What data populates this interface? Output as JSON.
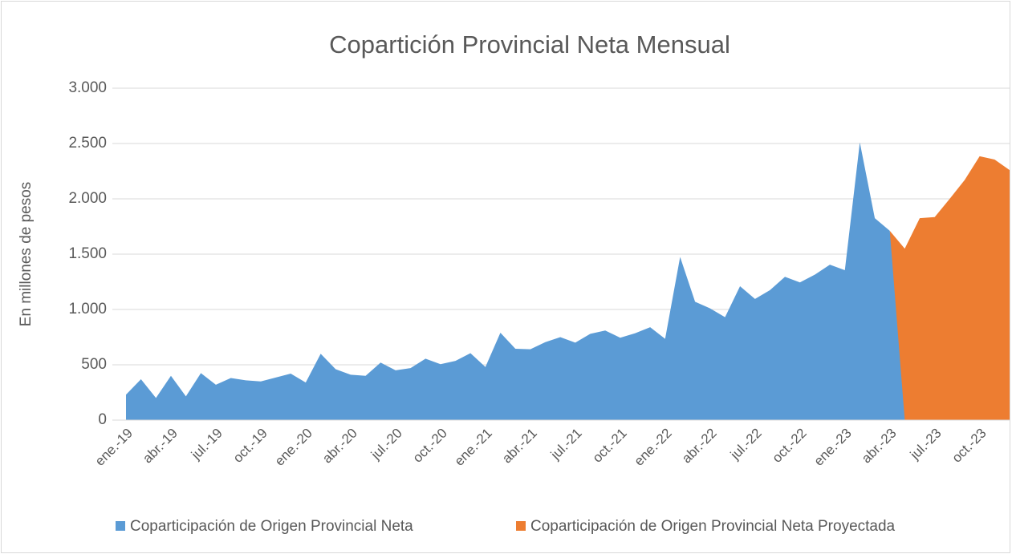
{
  "chart_data": {
    "type": "area",
    "title": "Copartición Provincial Neta Mensual",
    "y_label": "En millones de pesos",
    "categories": [
      "ene.-19",
      null,
      null,
      "abr.-19",
      null,
      null,
      "jul.-19",
      null,
      null,
      "oct.-19",
      null,
      null,
      "ene.-20",
      null,
      null,
      "abr.-20",
      null,
      null,
      "jul.-20",
      null,
      null,
      "oct.-20",
      null,
      null,
      "ene.-21",
      null,
      null,
      "abr.-21",
      null,
      null,
      "jul.-21",
      null,
      null,
      "oct.-21",
      null,
      null,
      "ene.-22",
      null,
      null,
      "abr.-22",
      null,
      null,
      "jul.-22",
      null,
      null,
      "oct.-22",
      null,
      null,
      "ene.-23",
      null,
      null,
      "abr.-23",
      null,
      null,
      "jul.-23",
      null,
      null,
      "oct.-23",
      null,
      null
    ],
    "series": [
      {
        "name": "Coparticipación de Origen Provincial Neta",
        "color": "#5b9bd5",
        "values": [
          230,
          370,
          200,
          400,
          215,
          425,
          320,
          380,
          360,
          350,
          385,
          420,
          340,
          600,
          460,
          410,
          400,
          520,
          450,
          470,
          555,
          505,
          535,
          605,
          480,
          790,
          645,
          640,
          705,
          750,
          700,
          780,
          810,
          745,
          785,
          840,
          735,
          1475,
          1070,
          1010,
          930,
          1210,
          1095,
          1175,
          1295,
          1245,
          1315,
          1405,
          1355,
          2510,
          1825,
          1711,
          0,
          0,
          0,
          0,
          0,
          0,
          0,
          0
        ]
      },
      {
        "name": "Coparticipación de Origen Provincial Neta Proyectada",
        "color": "#ed7d31",
        "values": [
          null,
          null,
          null,
          null,
          null,
          null,
          null,
          null,
          null,
          null,
          null,
          null,
          null,
          null,
          null,
          null,
          null,
          null,
          null,
          null,
          null,
          null,
          null,
          null,
          null,
          null,
          null,
          null,
          null,
          null,
          null,
          null,
          null,
          null,
          null,
          null,
          null,
          null,
          null,
          null,
          null,
          null,
          null,
          null,
          null,
          null,
          null,
          null,
          null,
          null,
          null,
          1711,
          1550,
          1825,
          1835,
          2000,
          2170,
          2385,
          2355,
          2260
        ]
      }
    ],
    "ylim": [
      0,
      3000
    ],
    "yticks": [
      0,
      500,
      {
        "value": 1000,
        "label": "1.000"
      },
      {
        "value": 1500,
        "label": "1.500"
      },
      {
        "value": 2000,
        "label": "2.000"
      },
      {
        "value": 2500,
        "label": "2.500"
      },
      {
        "value": 3000,
        "label": "3.000"
      }
    ],
    "grid": true,
    "legend": "bottom"
  }
}
